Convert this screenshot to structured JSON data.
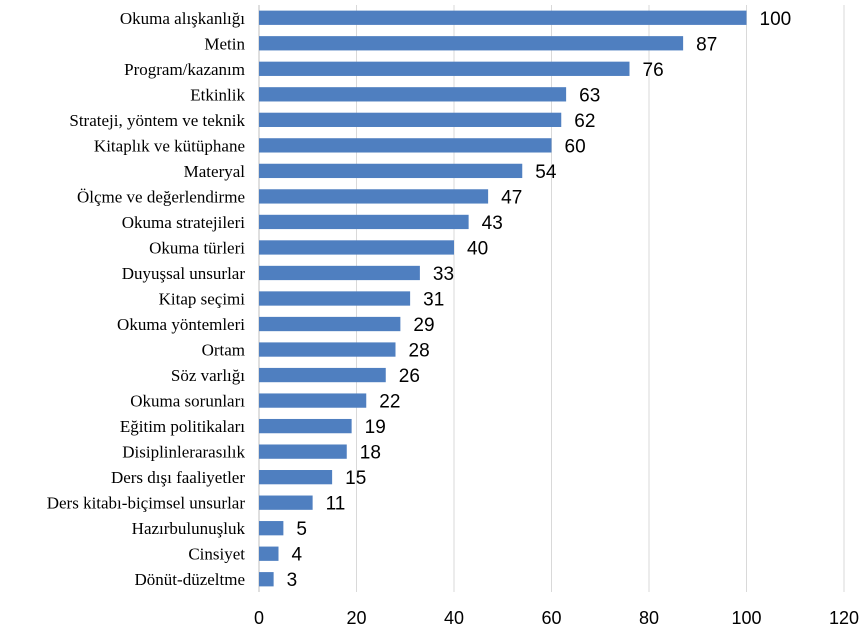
{
  "chart_data": {
    "type": "bar",
    "orientation": "horizontal",
    "categories": [
      "Okuma alışkanlığı",
      "Metin",
      "Program/kazanım",
      "Etkinlik",
      "Strateji, yöntem ve teknik",
      "Kitaplık ve kütüphane",
      "Materyal",
      "Ölçme ve değerlendirme",
      "Okuma stratejileri",
      "Okuma türleri",
      "Duyuşsal unsurlar",
      "Kitap seçimi",
      "Okuma yöntemleri",
      "Ortam",
      "Söz varlığı",
      "Okuma sorunları",
      "Eğitim politikaları",
      "Disiplinlerarasılık",
      "Ders dışı faaliyetler",
      "Ders kitabı-biçimsel unsurlar",
      "Hazırbulunuşluk",
      "Cinsiyet",
      "Dönüt-düzeltme"
    ],
    "values": [
      100,
      87,
      76,
      63,
      62,
      60,
      54,
      47,
      43,
      40,
      33,
      31,
      29,
      28,
      26,
      22,
      19,
      18,
      15,
      11,
      5,
      4,
      3
    ],
    "xlim": [
      0,
      120
    ],
    "xticks": [
      0,
      20,
      40,
      60,
      80,
      100,
      120
    ],
    "title": "",
    "xlabel": "",
    "ylabel": "",
    "grid": "vertical",
    "legend": "none",
    "data_labels": true,
    "bar_color": "#4f7fc0"
  }
}
